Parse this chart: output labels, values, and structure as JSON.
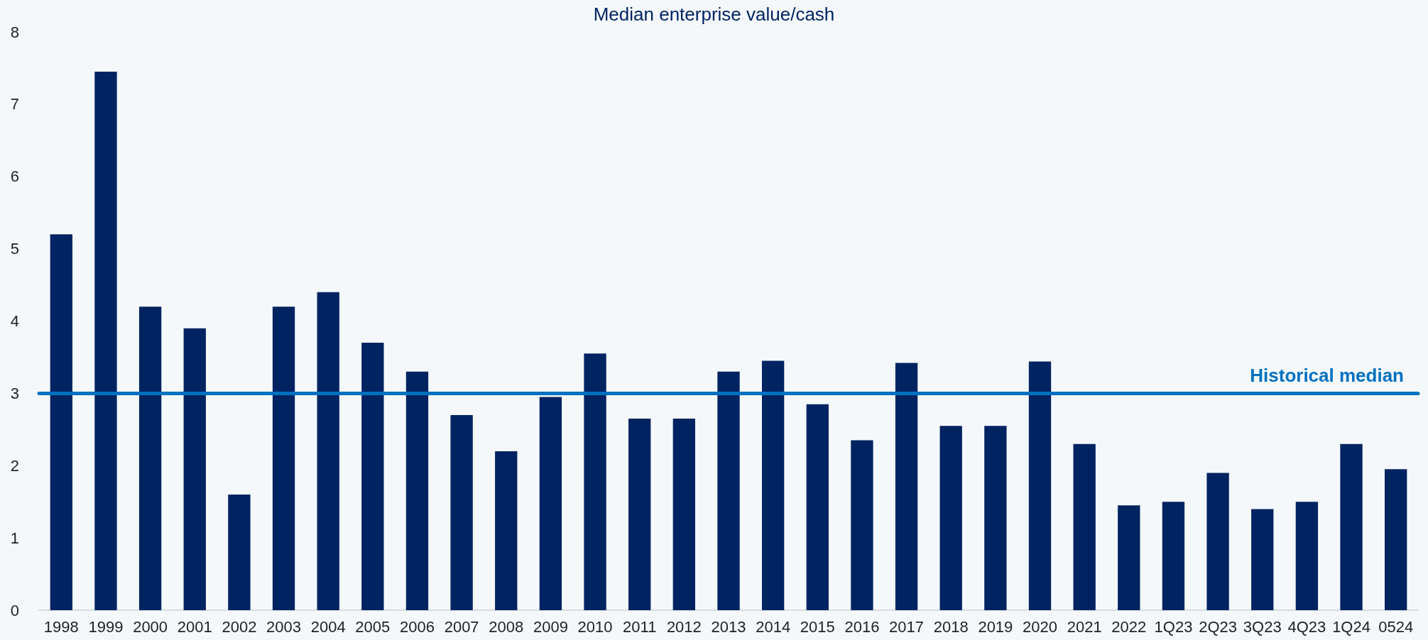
{
  "chart_data": {
    "type": "bar",
    "title": "Median enterprise value/cash",
    "categories": [
      "1998",
      "1999",
      "2000",
      "2001",
      "2002",
      "2003",
      "2004",
      "2005",
      "2006",
      "2007",
      "2008",
      "2009",
      "2010",
      "2011",
      "2012",
      "2013",
      "2014",
      "2015",
      "2016",
      "2017",
      "2018",
      "2019",
      "2020",
      "2021",
      "2022",
      "1Q23",
      "2Q23",
      "3Q23",
      "4Q23",
      "1Q24",
      "0524"
    ],
    "values": [
      5.2,
      7.45,
      4.2,
      3.9,
      1.6,
      4.2,
      4.4,
      3.7,
      3.3,
      2.7,
      2.2,
      2.95,
      3.55,
      2.65,
      2.65,
      3.3,
      3.45,
      2.85,
      2.35,
      3.42,
      2.55,
      2.55,
      3.44,
      2.3,
      1.45,
      1.5,
      1.9,
      1.4,
      1.5,
      2.3,
      1.95
    ],
    "color": "#002361",
    "ylim": [
      0,
      8
    ],
    "yticks": [
      0,
      1,
      2,
      3,
      4,
      5,
      6,
      7,
      8
    ],
    "grid": false,
    "ref_lines": [
      {
        "axis": "y",
        "value": 3,
        "label": "Historical median",
        "color": "#0070c0"
      }
    ]
  }
}
